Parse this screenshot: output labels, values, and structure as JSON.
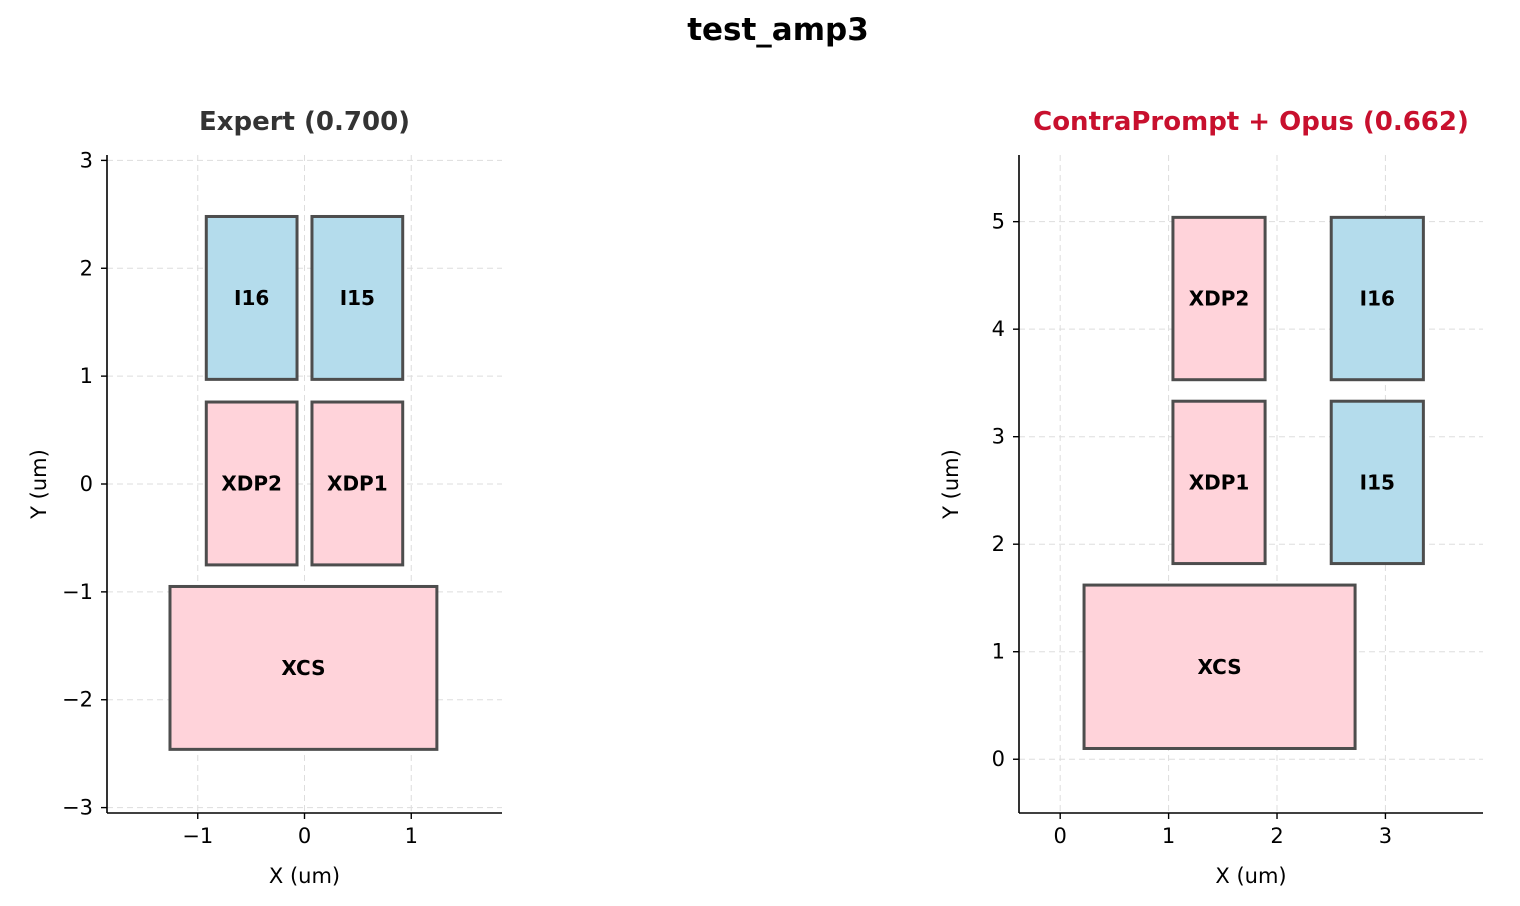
{
  "figure": {
    "title": "test_amp3"
  },
  "colors": {
    "pmos_fill": "#ffd3da",
    "nmos_fill": "#b4dcec",
    "edge": "#4d4d4d",
    "expert_title": "#333333",
    "model_title": "#c8102e"
  },
  "chart_data": [
    {
      "type": "layout",
      "title": "Expert (0.700)",
      "xlabel": "X (um)",
      "ylabel": "Y (um)",
      "xlim": [
        -1.85,
        1.85
      ],
      "ylim": [
        -3.05,
        3.05
      ],
      "xticks": [
        -1,
        0,
        1
      ],
      "yticks": [
        -3,
        -2,
        -1,
        0,
        1,
        2,
        3
      ],
      "grid": true,
      "blocks": [
        {
          "name": "I16",
          "type": "nmos",
          "x0": -0.92,
          "x1": -0.07,
          "y0": 0.97,
          "y1": 2.48
        },
        {
          "name": "I15",
          "type": "nmos",
          "x0": 0.07,
          "x1": 0.92,
          "y0": 0.97,
          "y1": 2.48
        },
        {
          "name": "XDP2",
          "type": "pmos",
          "x0": -0.92,
          "x1": -0.07,
          "y0": -0.75,
          "y1": 0.76
        },
        {
          "name": "XDP1",
          "type": "pmos",
          "x0": 0.07,
          "x1": 0.92,
          "y0": -0.75,
          "y1": 0.76
        },
        {
          "name": "XCS",
          "type": "pmos",
          "x0": -1.26,
          "x1": 1.24,
          "y0": -2.46,
          "y1": -0.95
        }
      ]
    },
    {
      "type": "layout",
      "title": "ContraPrompt + Opus (0.662)",
      "xlabel": "X (um)",
      "ylabel": "Y (um)",
      "xlim": [
        -0.38,
        3.9
      ],
      "ylim": [
        -0.5,
        5.62
      ],
      "xticks": [
        0,
        1,
        2,
        3
      ],
      "yticks": [
        0,
        1,
        2,
        3,
        4,
        5
      ],
      "grid": true,
      "blocks": [
        {
          "name": "XDP2",
          "type": "pmos",
          "x0": 1.04,
          "x1": 1.89,
          "y0": 3.53,
          "y1": 5.04
        },
        {
          "name": "I16",
          "type": "nmos",
          "x0": 2.5,
          "x1": 3.35,
          "y0": 3.53,
          "y1": 5.04
        },
        {
          "name": "XDP1",
          "type": "pmos",
          "x0": 1.04,
          "x1": 1.89,
          "y0": 1.82,
          "y1": 3.33
        },
        {
          "name": "I15",
          "type": "nmos",
          "x0": 2.5,
          "x1": 3.35,
          "y0": 1.82,
          "y1": 3.33
        },
        {
          "name": "XCS",
          "type": "pmos",
          "x0": 0.22,
          "x1": 2.72,
          "y0": 0.1,
          "y1": 1.62
        }
      ]
    }
  ]
}
